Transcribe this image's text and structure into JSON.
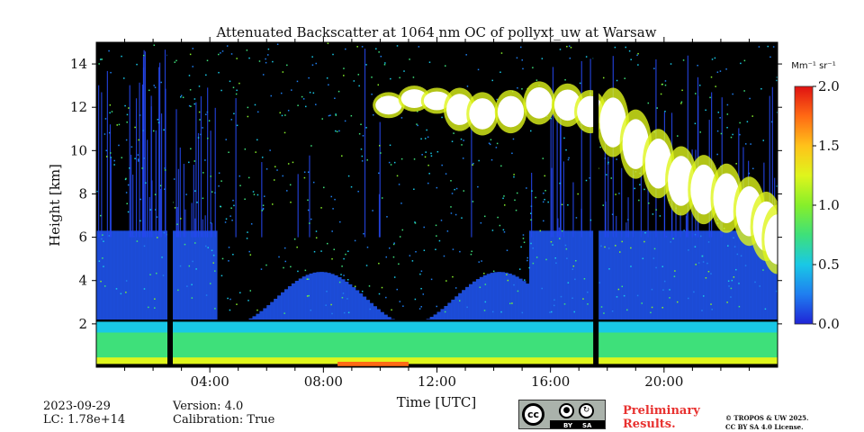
{
  "chart_data": {
    "type": "heatmap",
    "title": "Attenuated Backscatter at 1064 nm OC of pollyxt_uw at Warsaw",
    "xlabel": "Time [UTC]",
    "ylabel": "Height [km]",
    "xlim": [
      0,
      24
    ],
    "ylim": [
      0,
      15
    ],
    "x_ticks": [
      4,
      8,
      12,
      16,
      20
    ],
    "x_tick_labels": [
      "04:00",
      "08:00",
      "12:00",
      "16:00",
      "20:00"
    ],
    "y_ticks": [
      2,
      4,
      6,
      8,
      10,
      12,
      14
    ],
    "y_tick_labels": [
      "2",
      "4",
      "6",
      "8",
      "10",
      "12",
      "14"
    ],
    "colorbar": {
      "unit_label": "Mm⁻¹ sr⁻¹",
      "range": [
        0.0,
        2.0
      ],
      "ticks": [
        "0.0",
        "0.5",
        "1.0",
        "1.5",
        "2.0"
      ],
      "colors": [
        "#1f24d6",
        "#1f7ef0",
        "#19c8e6",
        "#3ee07a",
        "#86ef2a",
        "#dff51c",
        "#ffc21a",
        "#ff6a14",
        "#e01212"
      ]
    },
    "data_gaps_hours": [
      2.6,
      17.6
    ],
    "features": [
      {
        "name": "boundary layer",
        "from_h": 0.0,
        "to_h": 24.0,
        "top_km": 2.1,
        "value": 0.7
      },
      {
        "name": "cirrus cloud",
        "from_h": 10.3,
        "to_h": 24.0,
        "base_km": 5.6,
        "top_km": 13.0,
        "value": 2.0
      }
    ]
  },
  "footer": {
    "date": "2023-09-29",
    "lc": "LC: 1.78e+14",
    "version": "Version: 4.0",
    "calibration": "Calibration: True",
    "preliminary_line1": "Preliminary",
    "preliminary_line2": "Results.",
    "copyright_line1": "© TROPOS & UW 2025.",
    "copyright_line2": "CC BY SA 4.0 License."
  },
  "license_badge": {
    "cc": "cc",
    "by": "BY",
    "sa": "SA"
  }
}
